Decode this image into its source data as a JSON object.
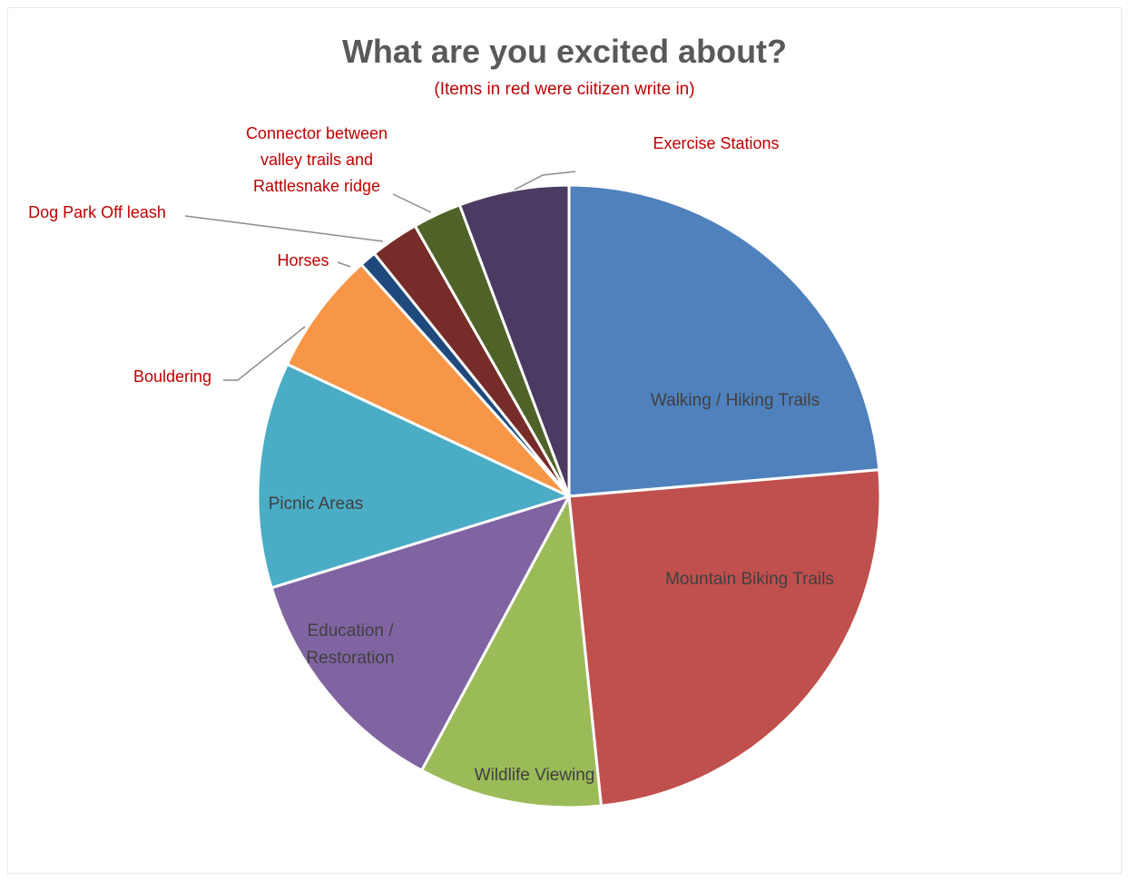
{
  "chart_data": {
    "type": "pie",
    "title": "What are you excited about?",
    "subtitle": "(Items in red were ciitizen write in)",
    "slices": [
      {
        "label": "Walking  / Hiking Trails",
        "value": 24.4,
        "color": "#4f81bd",
        "label_style": "inside"
      },
      {
        "label": "Mountain Biking Trails",
        "value": 25.5,
        "color": "#c0504d",
        "label_style": "inside"
      },
      {
        "label": "Wildlife Viewing",
        "value": 9.8,
        "color": "#9bbb59",
        "label_style": "inside"
      },
      {
        "label": "Education / Restoration",
        "value": 12.8,
        "color": "#8064a2",
        "label_style": "inside"
      },
      {
        "label": "Picnic Areas",
        "value": 12.1,
        "color": "#4bacc6",
        "label_style": "inside"
      },
      {
        "label": "Bouldering",
        "value": 6.6,
        "color": "#f79646",
        "label_style": "outside"
      },
      {
        "label": "Horses",
        "value": 0.9,
        "color": "#1f497d",
        "label_style": "outside"
      },
      {
        "label": "Dog Park Off leash",
        "value": 2.6,
        "color": "#772c2a",
        "label_style": "outside"
      },
      {
        "label": "Connector between valley trails and Rattlesnake ridge",
        "value": 2.6,
        "color": "#4f6228",
        "label_style": "outside"
      },
      {
        "label": "Exercise Stations",
        "value": 5.9,
        "color": "#4b3a61",
        "label_style": "outside"
      }
    ],
    "start_angle": "12 o'clock",
    "direction": "clockwise",
    "legend": "none"
  }
}
